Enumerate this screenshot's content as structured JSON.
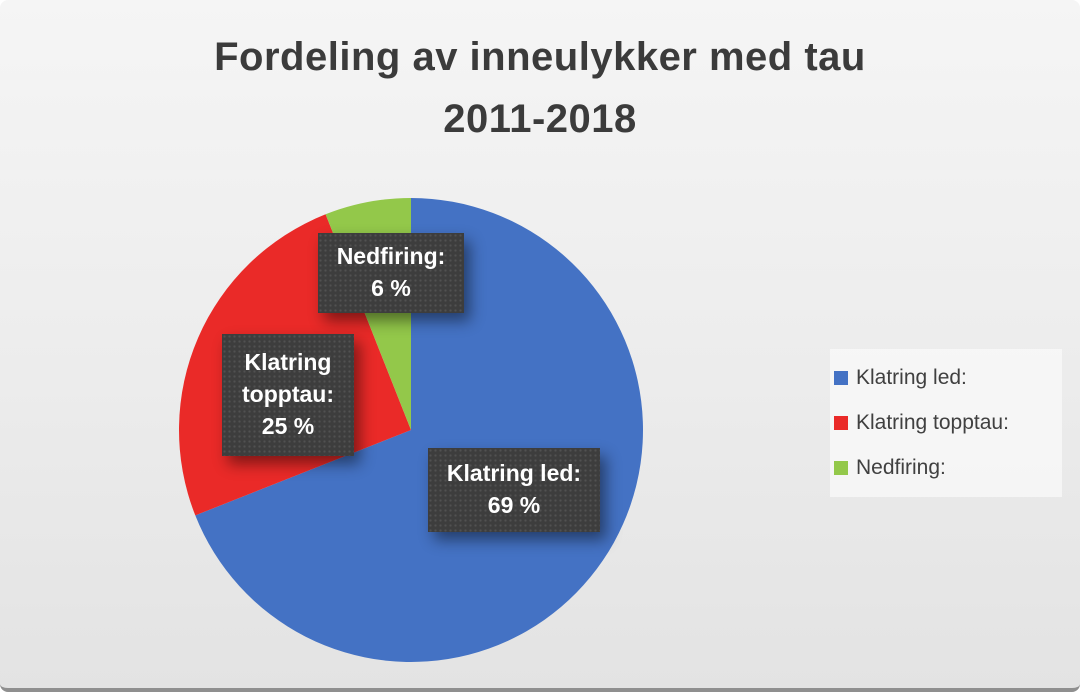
{
  "page": {
    "title_line1": "Fordeling av inneulykker med tau",
    "title_line2": "2011-2018"
  },
  "chart_data": {
    "type": "pie",
    "title": "Fordeling av inneulykker med tau 2011-2018",
    "start_angle_deg": 0,
    "direction": "clockwise",
    "legend_position": "right",
    "slices": [
      {
        "label": "Klatring led:",
        "value": 69,
        "color": "#4472C4",
        "callout": {
          "name": "Klatring led:",
          "value_text": "69 %"
        }
      },
      {
        "label": "Klatring topptau:",
        "value": 25,
        "color": "#EA2A28",
        "callout": {
          "name": "Klatring topptau:",
          "value_text": "25 %"
        }
      },
      {
        "label": "Nedfiring:",
        "value": 6,
        "color": "#93C84A",
        "callout": {
          "name": "Nedfiring:",
          "value_text": "6 %"
        }
      }
    ],
    "legend": {
      "entries": [
        "Klatring led:",
        "Klatring topptau:",
        "Nedfiring:"
      ]
    }
  }
}
